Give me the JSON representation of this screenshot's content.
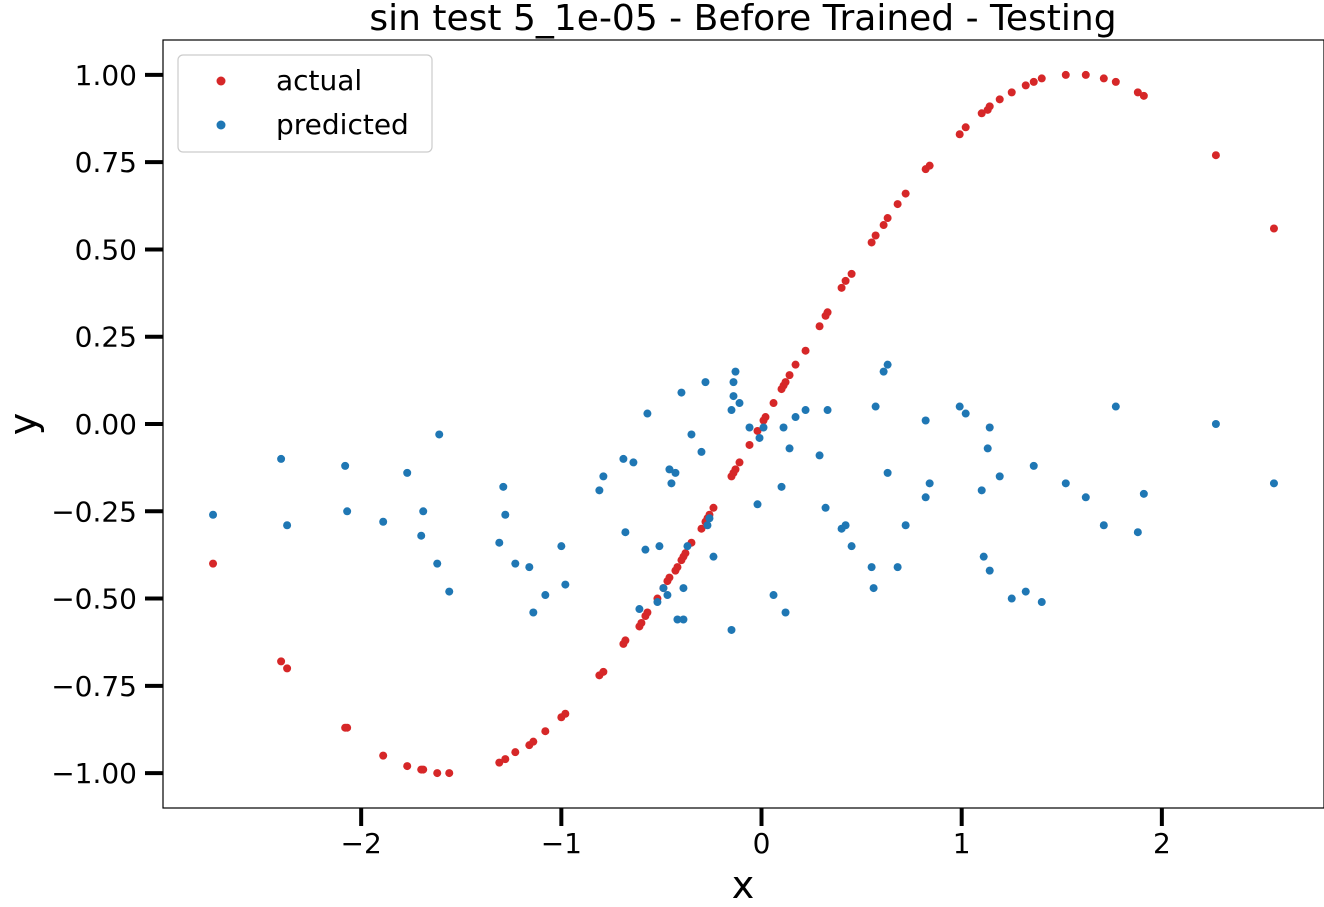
{
  "chart_data": {
    "type": "scatter",
    "title": "sin test 5_1e-05 - Before Trained - Testing",
    "xlabel": "x",
    "ylabel": "y",
    "xlim": [
      -2.99,
      2.81
    ],
    "ylim": [
      -1.1,
      1.1
    ],
    "xticks": [
      -2,
      -1,
      0,
      1,
      2
    ],
    "xtick_labels": [
      "−2",
      "−1",
      "0",
      "1",
      "2"
    ],
    "yticks": [
      -1.0,
      -0.75,
      -0.5,
      -0.25,
      0.0,
      0.25,
      0.5,
      0.75,
      1.0
    ],
    "ytick_labels": [
      "−1.00",
      "−0.75",
      "−0.50",
      "−0.25",
      "0.00",
      "0.25",
      "0.50",
      "0.75",
      "1.00"
    ],
    "legend": {
      "placement": "upper-left",
      "entries": [
        "actual",
        "predicted"
      ]
    },
    "grid": false,
    "series": [
      {
        "name": "actual",
        "color": "#d62728",
        "x": [
          -2.74,
          -2.4,
          -2.37,
          -2.08,
          -2.07,
          -1.89,
          -1.77,
          -1.7,
          -1.69,
          -1.62,
          -1.56,
          -1.31,
          -1.28,
          -1.23,
          -1.16,
          -1.14,
          -1.08,
          -1.0,
          -0.98,
          -0.81,
          -0.79,
          -0.69,
          -0.68,
          -0.61,
          -0.6,
          -0.58,
          -0.57,
          -0.52,
          -0.49,
          -0.47,
          -0.46,
          -0.43,
          -0.42,
          -0.4,
          -0.39,
          -0.38,
          -0.35,
          -0.3,
          -0.28,
          -0.27,
          -0.26,
          -0.24,
          -0.15,
          -0.14,
          -0.13,
          -0.11,
          -0.06,
          -0.02,
          0.01,
          0.02,
          0.06,
          0.1,
          0.11,
          0.12,
          0.14,
          0.17,
          0.22,
          0.29,
          0.32,
          0.33,
          0.4,
          0.42,
          0.45,
          0.55,
          0.57,
          0.61,
          0.63,
          0.68,
          0.72,
          0.82,
          0.84,
          0.99,
          1.02,
          1.1,
          1.13,
          1.14,
          1.19,
          1.25,
          1.32,
          1.36,
          1.4,
          1.52,
          1.62,
          1.71,
          1.77,
          1.88,
          1.91,
          2.27,
          2.56
        ],
        "y": [
          -0.4,
          -0.68,
          -0.7,
          -0.87,
          -0.87,
          -0.95,
          -0.98,
          -0.99,
          -0.99,
          -1.0,
          -1.0,
          -0.97,
          -0.96,
          -0.94,
          -0.92,
          -0.91,
          -0.88,
          -0.84,
          -0.83,
          -0.72,
          -0.71,
          -0.63,
          -0.62,
          -0.58,
          -0.57,
          -0.55,
          -0.54,
          -0.5,
          -0.47,
          -0.45,
          -0.44,
          -0.42,
          -0.41,
          -0.39,
          -0.38,
          -0.37,
          -0.34,
          -0.3,
          -0.28,
          -0.27,
          -0.26,
          -0.24,
          -0.15,
          -0.14,
          -0.13,
          -0.11,
          -0.06,
          -0.02,
          0.01,
          0.02,
          0.06,
          0.1,
          0.11,
          0.12,
          0.14,
          0.17,
          0.21,
          0.28,
          0.31,
          0.32,
          0.39,
          0.41,
          0.43,
          0.52,
          0.54,
          0.57,
          0.59,
          0.63,
          0.66,
          0.73,
          0.74,
          0.83,
          0.85,
          0.89,
          0.9,
          0.91,
          0.93,
          0.95,
          0.97,
          0.98,
          0.99,
          1.0,
          1.0,
          0.99,
          0.98,
          0.95,
          0.94,
          0.77,
          0.56
        ]
      },
      {
        "name": "predicted",
        "color": "#1f77b4",
        "x": [
          -2.74,
          -2.4,
          -2.37,
          -2.08,
          -2.07,
          -1.89,
          -1.77,
          -1.7,
          -1.69,
          -1.62,
          -1.61,
          -1.56,
          -1.31,
          -1.29,
          -1.28,
          -1.23,
          -1.16,
          -1.14,
          -1.08,
          -1.0,
          -0.98,
          -0.81,
          -0.79,
          -0.69,
          -0.68,
          -0.64,
          -0.61,
          -0.58,
          -0.57,
          -0.52,
          -0.51,
          -0.49,
          -0.47,
          -0.46,
          -0.45,
          -0.43,
          -0.42,
          -0.4,
          -0.39,
          -0.39,
          -0.37,
          -0.35,
          -0.3,
          -0.28,
          -0.27,
          -0.26,
          -0.24,
          -0.15,
          -0.15,
          -0.14,
          -0.14,
          -0.13,
          -0.11,
          -0.06,
          -0.02,
          -0.01,
          0.01,
          0.06,
          0.1,
          0.11,
          0.12,
          0.14,
          0.17,
          0.22,
          0.29,
          0.32,
          0.33,
          0.4,
          0.42,
          0.45,
          0.55,
          0.56,
          0.57,
          0.61,
          0.63,
          0.63,
          0.68,
          0.72,
          0.82,
          0.82,
          0.84,
          0.99,
          1.02,
          1.1,
          1.11,
          1.13,
          1.14,
          1.14,
          1.19,
          1.25,
          1.32,
          1.36,
          1.4,
          1.52,
          1.62,
          1.71,
          1.77,
          1.88,
          1.91,
          2.27,
          2.56
        ],
        "y": [
          -0.26,
          -0.1,
          -0.29,
          -0.12,
          -0.25,
          -0.28,
          -0.14,
          -0.32,
          -0.25,
          -0.4,
          -0.03,
          -0.48,
          -0.34,
          -0.18,
          -0.26,
          -0.4,
          -0.41,
          -0.54,
          -0.49,
          -0.35,
          -0.46,
          -0.19,
          -0.15,
          -0.1,
          -0.31,
          -0.11,
          -0.53,
          -0.36,
          0.03,
          -0.51,
          -0.35,
          -0.47,
          -0.49,
          -0.13,
          -0.17,
          -0.14,
          -0.56,
          0.09,
          -0.47,
          -0.56,
          -0.35,
          -0.03,
          -0.08,
          0.12,
          -0.29,
          -0.27,
          -0.38,
          -0.59,
          0.04,
          0.08,
          0.12,
          0.15,
          0.06,
          -0.01,
          -0.23,
          -0.04,
          -0.01,
          -0.49,
          -0.18,
          -0.01,
          -0.54,
          -0.07,
          0.02,
          0.04,
          -0.09,
          -0.24,
          0.04,
          -0.3,
          -0.29,
          -0.35,
          -0.41,
          -0.47,
          0.05,
          0.15,
          0.17,
          -0.14,
          -0.41,
          -0.29,
          0.01,
          -0.21,
          -0.17,
          0.05,
          0.03,
          -0.19,
          -0.38,
          -0.07,
          -0.42,
          -0.01,
          -0.15,
          -0.5,
          -0.48,
          -0.12,
          -0.51,
          -0.17,
          -0.21,
          -0.29,
          0.05,
          -0.31,
          -0.2,
          0.0,
          -0.17
        ]
      }
    ]
  }
}
